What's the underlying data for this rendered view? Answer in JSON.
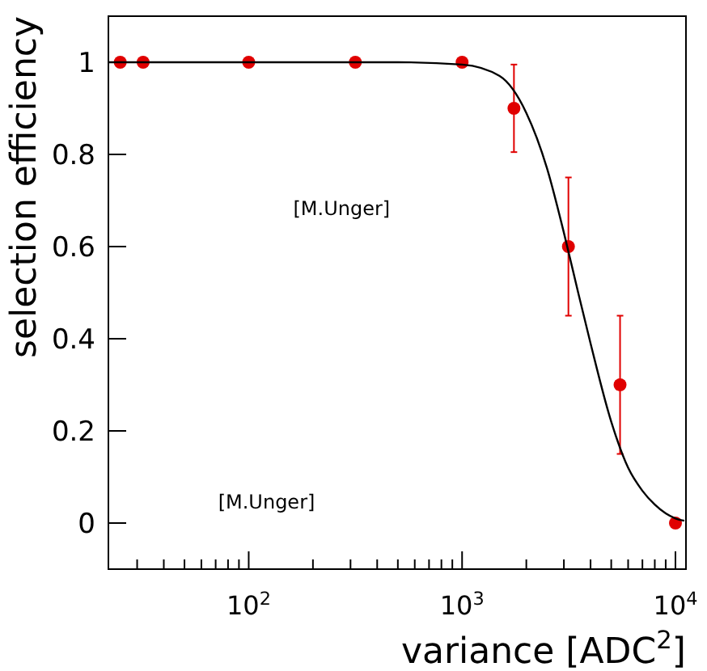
{
  "chart_data": {
    "type": "scatter",
    "xlabel": "variance [ADC$^{2}$]",
    "ylabel": "selection efficiency",
    "log": "x",
    "grid": false,
    "marker": "circle",
    "xlim": [
      22,
      11200
    ],
    "ylim": [
      -0.1,
      1.1
    ],
    "xticks": [
      {
        "value": 30,
        "label": null
      },
      {
        "value": 40,
        "label": null
      },
      {
        "value": 50,
        "label": null
      },
      {
        "value": 60,
        "label": null
      },
      {
        "value": 70,
        "label": null
      },
      {
        "value": 80,
        "label": null
      },
      {
        "value": 90,
        "label": null
      },
      {
        "value": 100,
        "label": "10$^{2}$"
      },
      {
        "value": 200,
        "label": null
      },
      {
        "value": 300,
        "label": null
      },
      {
        "value": 400,
        "label": null
      },
      {
        "value": 500,
        "label": null
      },
      {
        "value": 600,
        "label": null
      },
      {
        "value": 700,
        "label": null
      },
      {
        "value": 800,
        "label": null
      },
      {
        "value": 900,
        "label": null
      },
      {
        "value": 1000,
        "label": "10$^{3}$"
      },
      {
        "value": 2000,
        "label": null
      },
      {
        "value": 3000,
        "label": null
      },
      {
        "value": 4000,
        "label": null
      },
      {
        "value": 5000,
        "label": null
      },
      {
        "value": 6000,
        "label": null
      },
      {
        "value": 7000,
        "label": null
      },
      {
        "value": 8000,
        "label": null
      },
      {
        "value": 9000,
        "label": null
      },
      {
        "value": 10000,
        "label": "10$^{4}$"
      }
    ],
    "yticks": [
      0,
      0.2,
      0.4,
      0.6,
      0.8,
      1
    ],
    "annotations": [
      "[M.Unger]",
      "[M.Unger]"
    ],
    "series": [
      {
        "color": "#e00000",
        "x": [
          25,
          32,
          100,
          316,
          1000,
          1750,
          3150,
          5500,
          10000
        ],
        "values": [
          1,
          1,
          1,
          1,
          1,
          0.9,
          0.6,
          0.3,
          0
        ],
        "errors": [
          null,
          null,
          null,
          null,
          null,
          0.095,
          0.15,
          0.15,
          null
        ]
      },
      {
        "type": "line",
        "marker": "none",
        "color": "#000000",
        "line_style": "solid",
        "x": [
          22,
          500,
          1000,
          1500,
          2000,
          2500,
          3000,
          3500,
          4000,
          5000,
          6000,
          7000,
          8000,
          10000,
          11000
        ],
        "values": [
          1,
          1,
          0.995,
          0.97,
          0.89,
          0.77,
          0.63,
          0.5,
          0.39,
          0.22,
          0.12,
          0.07,
          0.04,
          0.01,
          0.005
        ]
      }
    ]
  }
}
